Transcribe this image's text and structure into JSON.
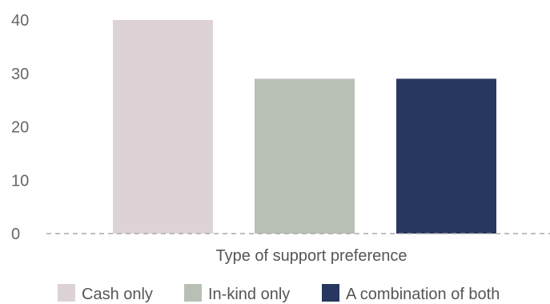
{
  "chart_data": {
    "type": "bar",
    "categories": [
      "Cash only",
      "In-kind only",
      "A combination of both"
    ],
    "values": [
      40,
      29,
      29
    ],
    "colors": [
      "#ddd3d6",
      "#b8c0b6",
      "#283760"
    ],
    "xlabel": "Type of support preference",
    "ylabel": "",
    "ylim": [
      0,
      40
    ],
    "yticks": [
      0,
      10,
      20,
      30,
      40
    ],
    "grid": false,
    "baseline_style": "dashed",
    "legend": {
      "position": "bottom",
      "entries": [
        "Cash only",
        "In-kind only",
        "A combination of both"
      ]
    }
  }
}
